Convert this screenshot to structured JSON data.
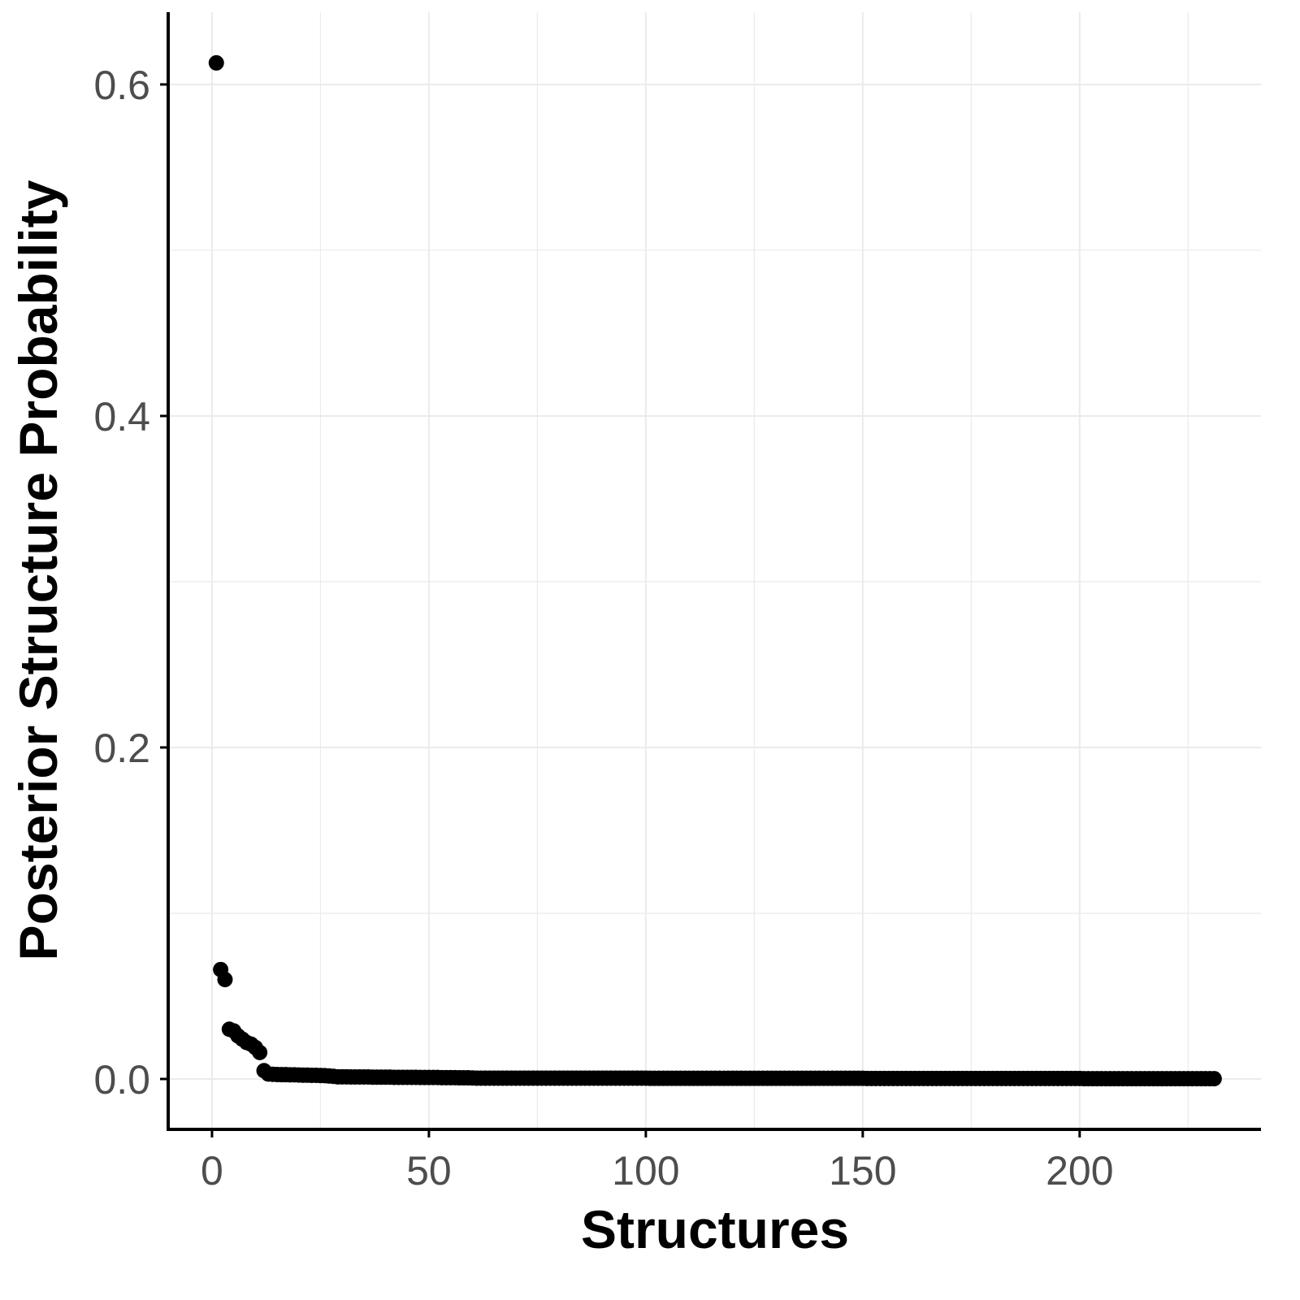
{
  "chart_data": {
    "type": "scatter",
    "xlabel": "Structures",
    "ylabel": "Posterior Structure Probability",
    "xlim": [
      -10.1,
      241.8
    ],
    "ylim": [
      -0.0304,
      0.6436
    ],
    "x_ticks": [
      0,
      50,
      100,
      150,
      200
    ],
    "x_tick_labels": [
      "0",
      "50",
      "100",
      "150",
      "200"
    ],
    "y_ticks": [
      0.0,
      0.2,
      0.4,
      0.6
    ],
    "y_tick_labels": [
      "0.0",
      "0.2",
      "0.4",
      "0.6"
    ],
    "grid": true,
    "point_color": "#000000",
    "values": [
      0.613,
      0.066,
      0.06,
      0.03,
      0.029,
      0.026,
      0.024,
      0.022,
      0.021,
      0.019,
      0.016,
      0.005,
      0.003,
      0.0028,
      0.0027,
      0.0026,
      0.0026,
      0.0025,
      0.0025,
      0.0024,
      0.0023,
      0.0023,
      0.0022,
      0.0022,
      0.0021,
      0.002,
      0.0018,
      0.0016,
      0.0013,
      0.0013,
      0.0013,
      0.0012,
      0.0012,
      0.0012,
      0.0012,
      0.0012,
      0.0011,
      0.0011,
      0.0011,
      0.0011,
      0.0011,
      0.001,
      0.001,
      0.001,
      0.001,
      0.001,
      0.001,
      0.0009,
      0.0009,
      0.0009,
      0.0009,
      0.0009,
      0.0008,
      0.0008,
      0.0008,
      0.0008,
      0.0007,
      0.0007,
      0.0007,
      0.0006,
      0.0005,
      0.0005,
      0.0005,
      0.0005,
      0.0005,
      0.0005,
      0.0005,
      0.0005,
      0.0005,
      0.0005,
      0.0005,
      0.0005,
      0.0005,
      0.0005,
      0.0005,
      0.0005,
      0.0005,
      0.0005,
      0.0005,
      0.0005,
      0.0005,
      0.0005,
      0.0005,
      0.0005,
      0.0005,
      0.0005,
      0.0005,
      0.0005,
      0.0005,
      0.0005,
      0.0005,
      0.0005,
      0.0005,
      0.0005,
      0.0005,
      0.0005,
      0.0005,
      0.0005,
      0.0005,
      0.0005,
      0.0004,
      0.0004,
      0.0004,
      0.0004,
      0.0004,
      0.0004,
      0.0004,
      0.0004,
      0.0004,
      0.0004,
      0.0004,
      0.0004,
      0.0004,
      0.0004,
      0.0004,
      0.0004,
      0.0004,
      0.0004,
      0.0004,
      0.0004,
      0.0004,
      0.0004,
      0.0004,
      0.0004,
      0.0004,
      0.0004,
      0.0004,
      0.0004,
      0.0004,
      0.0004,
      0.0004,
      0.0004,
      0.0004,
      0.0004,
      0.0004,
      0.0004,
      0.0004,
      0.0004,
      0.0004,
      0.0004,
      0.0004,
      0.0004,
      0.0004,
      0.0004,
      0.0004,
      0.0004,
      0.0004,
      0.0004,
      0.0004,
      0.0004,
      0.0003,
      0.0003,
      0.0003,
      0.0003,
      0.0003,
      0.0003,
      0.0003,
      0.0003,
      0.0003,
      0.0003,
      0.0003,
      0.0003,
      0.0003,
      0.0003,
      0.0003,
      0.0003,
      0.0003,
      0.0003,
      0.0003,
      0.0003,
      0.0003,
      0.0003,
      0.0003,
      0.0003,
      0.0003,
      0.0003,
      0.0003,
      0.0003,
      0.0003,
      0.0003,
      0.0003,
      0.0003,
      0.0003,
      0.0003,
      0.0003,
      0.0003,
      0.0003,
      0.0003,
      0.0003,
      0.0003,
      0.0003,
      0.0003,
      0.0003,
      0.0003,
      0.0003,
      0.0003,
      0.0003,
      0.0003,
      0.0003,
      0.0003,
      0.0002,
      0.0002,
      0.0002,
      0.0002,
      0.0002,
      0.0002,
      0.0002,
      0.0002,
      0.0002,
      0.0002,
      0.0002,
      0.0002,
      0.0002,
      0.0002,
      0.0002,
      0.0002,
      0.0002,
      0.0002,
      0.0002,
      0.0002,
      0.0002,
      0.0002,
      0.0002,
      0.0002,
      0.0002,
      0.0002,
      0.0002,
      0.0002,
      0.0002,
      0.0002,
      0.0002
    ]
  }
}
